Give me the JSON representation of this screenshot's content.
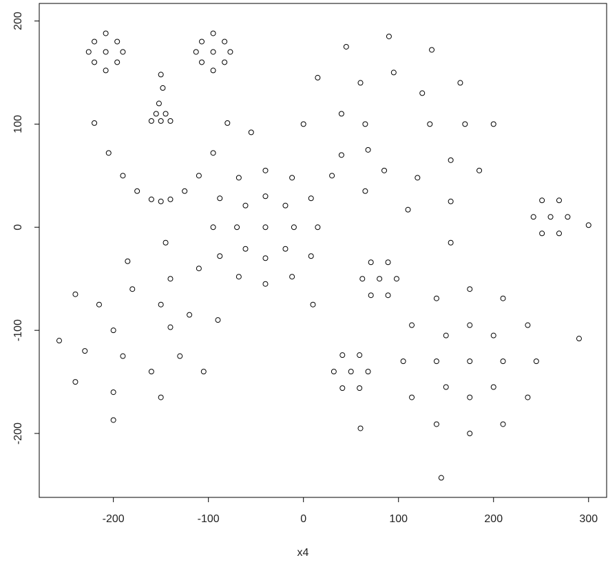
{
  "chart_data": {
    "type": "scatter",
    "xlabel": "x4",
    "x": [
      -208,
      -220,
      -196,
      -220,
      -196,
      -208,
      -208,
      -226,
      -190,
      -95,
      -107,
      -83,
      -107,
      -83,
      -95,
      -95,
      -113,
      -77,
      -150,
      -148,
      -152,
      -145,
      -155,
      -160,
      -140,
      -150,
      -220,
      -205,
      -190,
      -175,
      -160,
      -150,
      -140,
      -125,
      -110,
      -95,
      -80,
      0,
      15,
      45,
      90,
      135,
      165,
      170,
      155,
      120,
      85,
      68,
      65,
      133,
      125,
      95,
      60,
      40,
      40,
      65,
      110,
      155,
      185,
      200,
      -200,
      -240,
      -257,
      -240,
      -185,
      -140,
      -120,
      -130,
      -160,
      -190,
      -200,
      -145,
      -110,
      -90,
      -105,
      -150,
      -200,
      -230,
      -215,
      -180,
      -150,
      -140,
      -40,
      -10,
      -19,
      -40,
      -61,
      -70,
      -61,
      -40,
      -19,
      15,
      8,
      -12,
      -40,
      -68,
      -88,
      -95,
      -88,
      -68,
      -40,
      -12,
      8,
      -55,
      10,
      30,
      80,
      98,
      89,
      71,
      62,
      71,
      89,
      50,
      68,
      59,
      41,
      32,
      41,
      59,
      175,
      210,
      200,
      175,
      150,
      140,
      150,
      175,
      200,
      245,
      236,
      210,
      175,
      140,
      114,
      105,
      114,
      140,
      175,
      210,
      236,
      145,
      290,
      60,
      155,
      260,
      278,
      269,
      251,
      242,
      251,
      269,
      300
    ],
    "y": [
      170,
      180,
      180,
      160,
      160,
      188,
      152,
      170,
      170,
      170,
      180,
      180,
      160,
      160,
      188,
      152,
      170,
      170,
      148,
      135,
      120,
      110,
      110,
      103,
      103,
      103,
      101,
      72,
      50,
      35,
      27,
      25,
      27,
      35,
      50,
      72,
      101,
      100,
      145,
      175,
      185,
      172,
      140,
      100,
      65,
      48,
      55,
      75,
      100,
      100,
      130,
      150,
      140,
      110,
      70,
      35,
      17,
      25,
      55,
      100,
      -187,
      -150,
      -110,
      -65,
      -33,
      -50,
      -85,
      -125,
      -140,
      -125,
      -100,
      -15,
      -40,
      -90,
      -140,
      -165,
      -160,
      -120,
      -75,
      -60,
      -75,
      -97,
      0,
      0,
      21,
      30,
      21,
      0,
      -21,
      -30,
      -21,
      0,
      28,
      48,
      55,
      48,
      28,
      0,
      -28,
      -48,
      -55,
      -48,
      -28,
      92,
      -75,
      50,
      -50,
      -50,
      -34,
      -34,
      -50,
      -66,
      -66,
      -140,
      -140,
      -124,
      -124,
      -140,
      -156,
      -156,
      -130,
      -130,
      -105,
      -95,
      -105,
      -130,
      -155,
      -165,
      -155,
      -130,
      -95,
      -69,
      -60,
      -69,
      -95,
      -130,
      -165,
      -191,
      -200,
      -191,
      -165,
      -243,
      -108,
      -195,
      -15,
      10,
      10,
      26,
      26,
      10,
      -6,
      -6,
      2
    ],
    "color": "#000000",
    "xlim": [
      -278,
      319
    ],
    "ylim": [
      -262,
      217
    ],
    "xticks": [
      -200,
      -100,
      0,
      100,
      200,
      300
    ],
    "yticks": [
      -200,
      -100,
      0,
      100,
      200
    ]
  }
}
